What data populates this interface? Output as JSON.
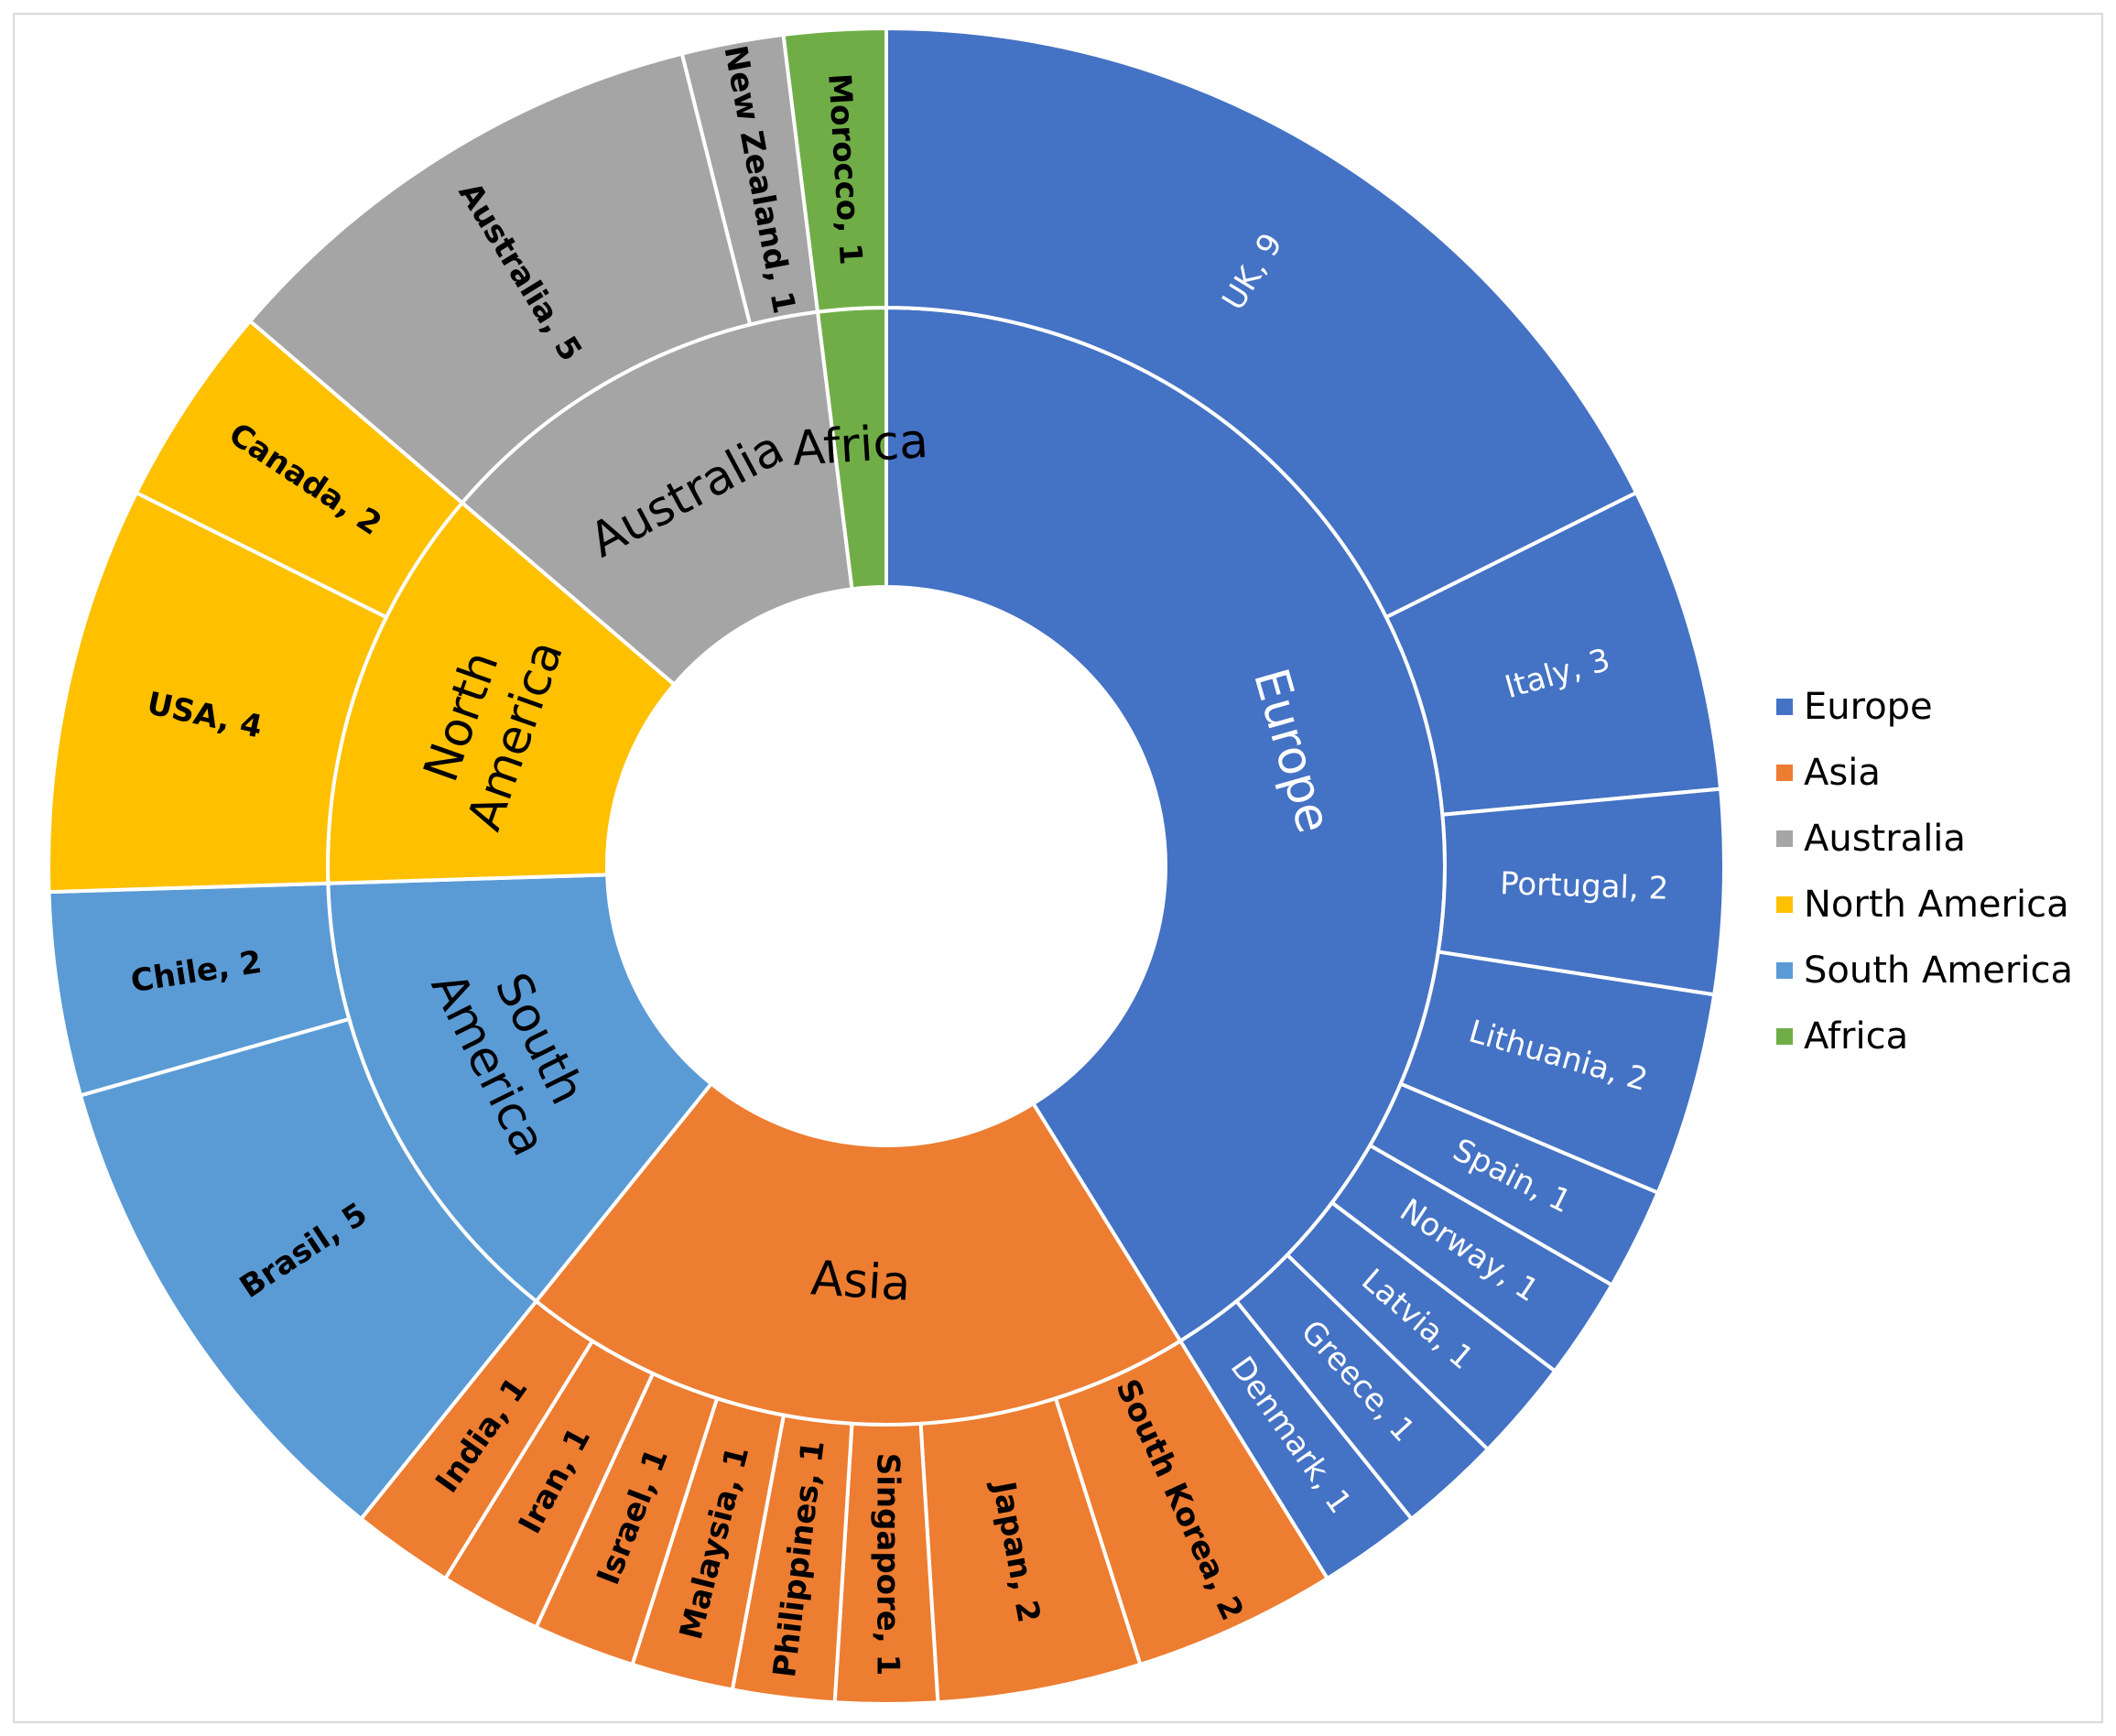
{
  "chart_data": {
    "type": "sunburst",
    "groups": [
      {
        "name": "Europe",
        "color": "#4472C4",
        "label_color": "#ffffff",
        "children": [
          {
            "label": "UK, 9",
            "value": 9
          },
          {
            "label": "Italy, 3",
            "value": 3
          },
          {
            "label": "Portugal, 2",
            "value": 2
          },
          {
            "label": "Lithuania, 2",
            "value": 2
          },
          {
            "label": "Spain, 1",
            "value": 1
          },
          {
            "label": "Norway, 1",
            "value": 1
          },
          {
            "label": "Latvia, 1",
            "value": 1
          },
          {
            "label": "Greece, 1",
            "value": 1
          },
          {
            "label": "Denmark, 1",
            "value": 1
          }
        ]
      },
      {
        "name": "Asia",
        "color": "#ED7D31",
        "label_color": "#000000",
        "children": [
          {
            "label": "South Korea, 2",
            "value": 2
          },
          {
            "label": "Japan, 2",
            "value": 2
          },
          {
            "label": "Singapore, 1",
            "value": 1
          },
          {
            "label": "Philippines, 1",
            "value": 1
          },
          {
            "label": "Malaysia, 1",
            "value": 1
          },
          {
            "label": "Israel, 1",
            "value": 1
          },
          {
            "label": "Iran, 1",
            "value": 1
          },
          {
            "label": "India, 1",
            "value": 1
          }
        ]
      },
      {
        "name": "South America",
        "color": "#5B9BD5",
        "label_color": "#000000",
        "children": [
          {
            "label": "Brasil, 5",
            "value": 5
          },
          {
            "label": "Chile, 2",
            "value": 2
          }
        ]
      },
      {
        "name": "North America",
        "color": "#FFC000",
        "label_color": "#000000",
        "children": [
          {
            "label": "USA, 4",
            "value": 4
          },
          {
            "label": "Canada, 2",
            "value": 2
          }
        ]
      },
      {
        "name": "Australia",
        "color": "#A5A5A5",
        "label_color": "#000000",
        "children": [
          {
            "label": "Australia, 5",
            "value": 5
          },
          {
            "label": "New Zealand, 1",
            "value": 1
          }
        ]
      },
      {
        "name": "Africa",
        "color": "#70AD47",
        "label_color": "#000000",
        "children": [
          {
            "label": "Morocco, 1",
            "value": 1
          }
        ]
      }
    ],
    "legend": {
      "position": "right",
      "entries": [
        "Europe",
        "Asia",
        "Australia",
        "North America",
        "South America",
        "Africa"
      ]
    }
  }
}
